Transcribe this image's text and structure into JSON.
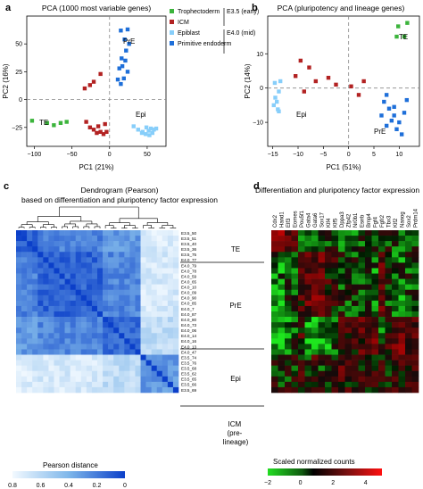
{
  "panels": {
    "a": {
      "label": "a",
      "title": "PCA (1000 most variable genes)",
      "xlabel": "PC1 (21%)",
      "ylabel": "PC2 (16%)",
      "xticks": [
        -100,
        -50,
        0,
        50
      ],
      "yticks": [
        -25,
        0,
        25,
        50
      ],
      "group_labels": [
        "TE",
        "PrE",
        "Epi"
      ]
    },
    "b": {
      "label": "b",
      "title": "PCA (pluripotency and lineage genes)",
      "xlabel": "PC1 (51%)",
      "ylabel": "PC2 (14%)",
      "xticks": [
        -15,
        -10,
        -5,
        0,
        5,
        10
      ],
      "yticks": [
        -10,
        0,
        10
      ],
      "group_labels": [
        "TE",
        "Epi",
        "PrE"
      ]
    },
    "c": {
      "label": "c",
      "title_line1": "Dendrogram (Pearson)",
      "title_line2": "based on differentiation and pluripotency factor expression",
      "colorbar_title": "Pearson distance",
      "colorbar_ticks": [
        "0.8",
        "0.6",
        "0.4",
        "0.2",
        "0"
      ]
    },
    "d": {
      "label": "d",
      "title": "Differentiation and pluripotency factor expression",
      "colorbar_title": "Scaled normalized counts",
      "colorbar_ticks": [
        "−2",
        "0",
        "2",
        "4"
      ]
    }
  },
  "legend": {
    "items": [
      {
        "label": "Trophectoderm",
        "color": "#3cb43c"
      },
      {
        "label": "ICM",
        "color": "#b22222"
      },
      {
        "label": "Epiblast",
        "color": "#87cefa"
      },
      {
        "label": "Primitive endoderm",
        "color": "#1e6fd9"
      }
    ],
    "stage_early": "E3.5 (early)",
    "stage_mid": "E4.0 (mid)"
  },
  "heatmap_groups": [
    "TE",
    "PrE",
    "Epi",
    "ICM (pre-lineage)"
  ],
  "row_labels": [
    "E3.5_50",
    "E3.5_51",
    "E3.5_40",
    "E3.5_36",
    "E3.5_75",
    "E4.0_77",
    "E4.0_79",
    "E4.0_78",
    "E4.0_59",
    "E4.0_65",
    "E4.0_10",
    "E4.0_09",
    "E4.0_90",
    "E4.0_85",
    "E4.0_7",
    "E4.0_87",
    "E4.0_80",
    "E4.0_73",
    "E4.0_06",
    "E4.0_14",
    "E4.0_16",
    "E4.0_13",
    "E4.0_47",
    "E3.5_74",
    "E3.5_76",
    "E3.5_68",
    "E3.5_62",
    "E3.5_65",
    "E3.5_66",
    "E3.5_69"
  ],
  "genes": [
    "Cdx2",
    "Hand1",
    "Elf3",
    "Eomes",
    "Pou5f1",
    "Gata4",
    "Gata6",
    "Sox17",
    "Klf4",
    "Klf5",
    "Dppa3",
    "Zfp42",
    "Nr0b1",
    "Esrrb",
    "Bmp4",
    "Fgf4",
    "Fgfr2",
    "Tbx3",
    "Klf2",
    "Nanog",
    "Sox2",
    "Prdm14"
  ],
  "colors": {
    "trophectoderm": "#3cb43c",
    "icm": "#b22222",
    "epiblast": "#87cefa",
    "primitive_endoderm": "#1e6fd9"
  },
  "chart_data": [
    {
      "type": "scatter",
      "title": "PCA (1000 most variable genes)",
      "xlabel": "PC1 (21%)",
      "ylabel": "PC2 (16%)",
      "xlim": [
        -110,
        75
      ],
      "ylim": [
        -42,
        75
      ],
      "grid": false,
      "legend": "top-right",
      "series": [
        {
          "name": "Trophectoderm",
          "color": "#3cb43c",
          "points": [
            [
              -103,
              -19
            ],
            [
              -83,
              -21
            ],
            [
              -74,
              -23
            ],
            [
              -65,
              -21
            ],
            [
              -57,
              -20
            ]
          ]
        },
        {
          "name": "ICM",
          "color": "#b22222",
          "points": [
            [
              -33,
              10
            ],
            [
              -26,
              13
            ],
            [
              -21,
              16
            ],
            [
              -12,
              23
            ],
            [
              -31,
              -20
            ],
            [
              -26,
              -25
            ],
            [
              -21,
              -27
            ],
            [
              -17,
              -30
            ],
            [
              -12,
              -29
            ],
            [
              -8,
              -31
            ],
            [
              -4,
              -29
            ],
            [
              -6,
              -22
            ],
            [
              -15,
              -24
            ]
          ]
        },
        {
          "name": "Epiblast",
          "color": "#87cefa",
          "points": [
            [
              32,
              -24
            ],
            [
              38,
              -27
            ],
            [
              44,
              -29
            ],
            [
              48,
              -31
            ],
            [
              53,
              -32
            ],
            [
              57,
              -30
            ],
            [
              59,
              -27
            ],
            [
              62,
              -26
            ],
            [
              55,
              -26
            ],
            [
              49,
              -25
            ],
            [
              43,
              -30
            ],
            [
              52,
              -28
            ]
          ]
        },
        {
          "name": "Primitive endoderm",
          "color": "#1e6fd9",
          "points": [
            [
              15,
              62
            ],
            [
              24,
              63
            ],
            [
              20,
              54
            ],
            [
              26,
              50
            ],
            [
              22,
              44
            ],
            [
              16,
              37
            ],
            [
              21,
              35
            ],
            [
              17,
              30
            ],
            [
              24,
              25
            ],
            [
              11,
              18
            ],
            [
              15,
              14
            ],
            [
              13,
              28
            ],
            [
              19,
              19
            ]
          ]
        }
      ]
    },
    {
      "type": "scatter",
      "title": "PCA (pluripotency and lineage genes)",
      "xlabel": "PC1 (51%)",
      "ylabel": "PC2 (14%)",
      "xlim": [
        -16,
        14
      ],
      "ylim": [
        -17,
        21
      ],
      "grid": false,
      "series": [
        {
          "name": "Trophectoderm",
          "color": "#3cb43c",
          "points": [
            [
              9.8,
              18
            ],
            [
              11.6,
              19
            ],
            [
              9.5,
              15
            ],
            [
              11,
              15
            ]
          ]
        },
        {
          "name": "ICM",
          "color": "#b22222",
          "points": [
            [
              -9.5,
              8
            ],
            [
              -7.8,
              6
            ],
            [
              -10.5,
              3.5
            ],
            [
              -6.5,
              2
            ],
            [
              -4,
              3
            ],
            [
              -2.5,
              1
            ],
            [
              0.5,
              0.5
            ],
            [
              3,
              2
            ],
            [
              2,
              -2
            ],
            [
              -8.8,
              -1
            ]
          ]
        },
        {
          "name": "Epiblast",
          "color": "#87cefa",
          "points": [
            [
              -14.2,
              -4
            ],
            [
              -14.8,
              -5
            ],
            [
              -13.8,
              -1
            ],
            [
              -14.5,
              -2.8
            ],
            [
              -14,
              -6.2
            ],
            [
              -13.8,
              -6.8
            ],
            [
              -13.5,
              2
            ],
            [
              -14.6,
              1.5
            ]
          ]
        },
        {
          "name": "Primitive endoderm",
          "color": "#1e6fd9",
          "points": [
            [
              7,
              -4
            ],
            [
              8,
              -6
            ],
            [
              9,
              -8
            ],
            [
              10,
              -10
            ],
            [
              8.5,
              -9.5
            ],
            [
              9.5,
              -12
            ],
            [
              10.5,
              -13.5
            ],
            [
              7.5,
              -11
            ],
            [
              9,
              -5.5
            ],
            [
              11,
              -7.2
            ],
            [
              7.5,
              -2
            ],
            [
              11.5,
              -3.5
            ],
            [
              6.5,
              -8
            ]
          ]
        }
      ]
    },
    {
      "type": "heatmap",
      "title": "Dendrogram (Pearson)",
      "subtitle": "based on differentiation and pluripotency factor expression",
      "colorbar_label": "Pearson distance",
      "colorbar_range": [
        0.8,
        0
      ],
      "rows": 30,
      "columns": 30,
      "blocks": [
        {
          "rows": [
            0,
            23
          ],
          "cols": [
            0,
            23
          ],
          "distance": 0.15
        },
        {
          "rows": [
            0,
            23
          ],
          "cols": [
            23,
            30
          ],
          "distance": 0.75
        },
        {
          "rows": [
            23,
            30
          ],
          "cols": [
            23,
            30
          ],
          "distance": 0.35
        }
      ]
    },
    {
      "type": "heatmap",
      "title": "Differentiation and pluripotency factor expression",
      "colorbar_label": "Scaled normalized counts",
      "colorbar_range": [
        -2,
        5
      ],
      "rows": 30,
      "columns": 22
    }
  ]
}
